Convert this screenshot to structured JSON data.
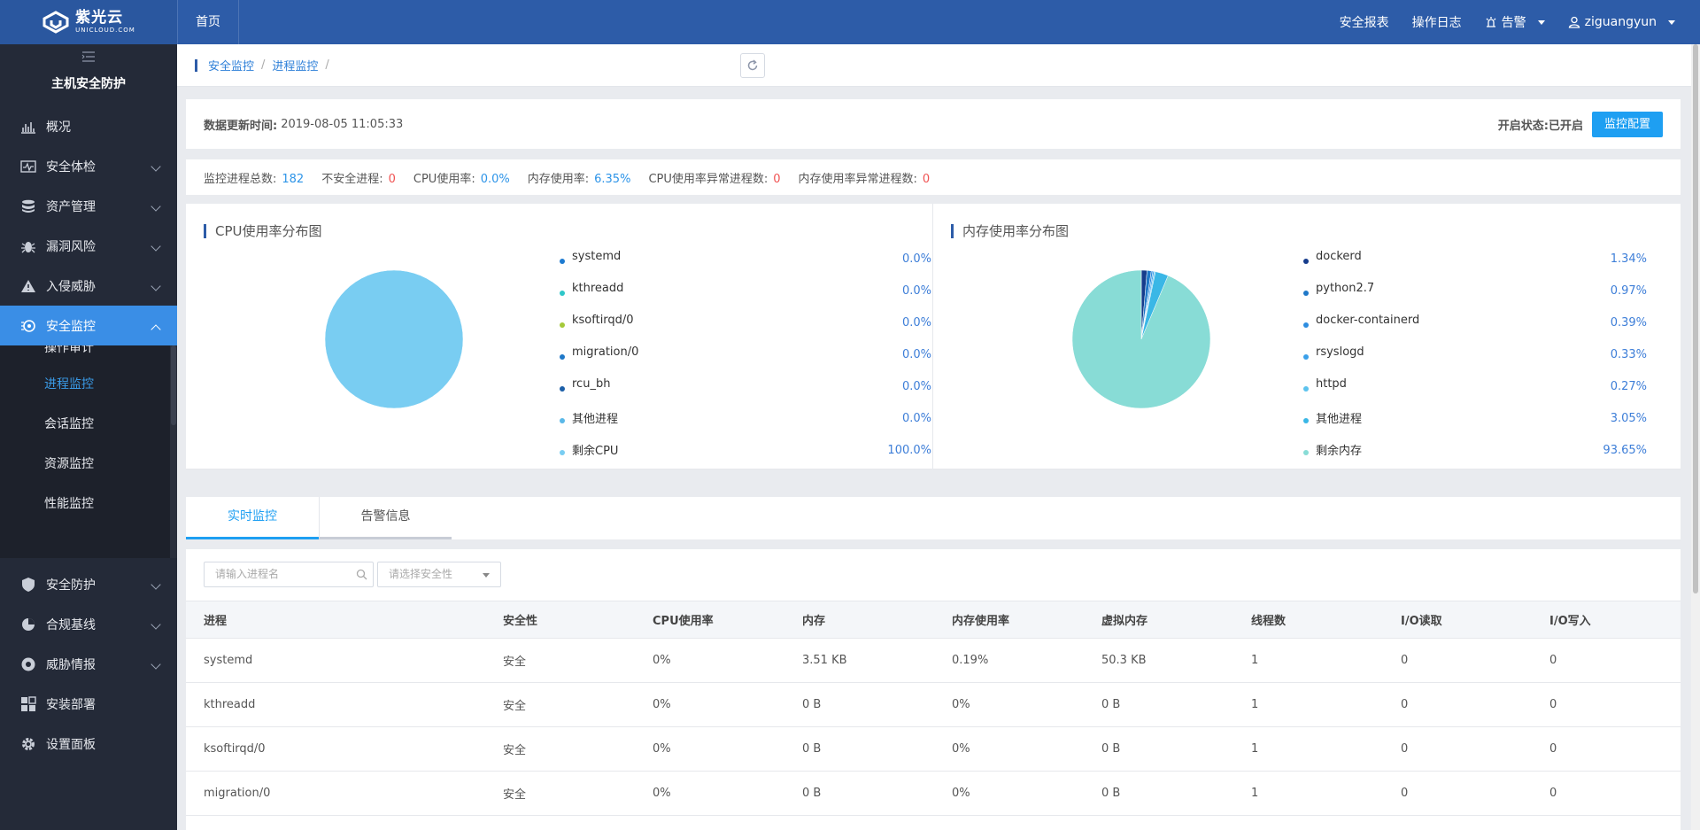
{
  "topbar": {
    "logo_cn": "紫光云",
    "logo_en": "UNICLOUD.COM",
    "home": "首页",
    "security_report": "安全报表",
    "operation_log": "操作日志",
    "alarm": "告警",
    "username": "ziguangyun"
  },
  "sidebar": {
    "title": "主机安全防护",
    "items": [
      {
        "label": "概况",
        "icon": "bar-chart-icon"
      },
      {
        "label": "安全体检",
        "icon": "checkup-icon"
      },
      {
        "label": "资产管理",
        "icon": "database-icon"
      },
      {
        "label": "漏洞风险",
        "icon": "bug-icon"
      },
      {
        "label": "入侵威胁",
        "icon": "warning-triangle-icon"
      },
      {
        "label": "安全监控",
        "icon": "monitor-icon"
      },
      {
        "label": "安全防护",
        "icon": "shield-icon"
      },
      {
        "label": "合规基线",
        "icon": "baseline-icon"
      },
      {
        "label": "威胁情报",
        "icon": "intel-icon"
      },
      {
        "label": "安装部署",
        "icon": "grid-icon"
      },
      {
        "label": "设置面板",
        "icon": "gear-icon"
      }
    ],
    "submenu": [
      "操作审计",
      "进程监控",
      "会话监控",
      "资源监控",
      "性能监控"
    ]
  },
  "breadcrumb": {
    "level1": "安全监控",
    "level2": "进程监控",
    "sep": "/"
  },
  "update": {
    "label": "数据更新时间:",
    "time": "2019-08-05 11:05:33",
    "status": "开启状态:已开启",
    "config_button": "监控配置"
  },
  "stats": {
    "total_label": "监控进程总数:",
    "total": "182",
    "unsafe_label": "不安全进程:",
    "unsafe": "0",
    "cpu_label": "CPU使用率:",
    "cpu": "0.0%",
    "mem_label": "内存使用率:",
    "mem": "6.35%",
    "cpu_abn_label": "CPU使用率异常进程数:",
    "cpu_abn": "0",
    "mem_abn_label": "内存使用率异常进程数:",
    "mem_abn": "0"
  },
  "cpu_chart": {
    "title": "CPU使用率分布图",
    "legend": [
      {
        "name": "systemd",
        "pct": "0.0%",
        "color": "#1d7bd1"
      },
      {
        "name": "kthreadd",
        "pct": "0.0%",
        "color": "#2ec7c9"
      },
      {
        "name": "ksoftirqd/0",
        "pct": "0.0%",
        "color": "#a5c93a"
      },
      {
        "name": "migration/0",
        "pct": "0.0%",
        "color": "#1f78c8"
      },
      {
        "name": "rcu_bh",
        "pct": "0.0%",
        "color": "#1c5fa8"
      },
      {
        "name": "其他进程",
        "pct": "0.0%",
        "color": "#5ab8e8"
      },
      {
        "name": "剩余CPU",
        "pct": "100.0%",
        "color": "#79cdf2"
      }
    ]
  },
  "mem_chart": {
    "title": "内存使用率分布图",
    "legend": [
      {
        "name": "dockerd",
        "pct": "1.34%",
        "color": "#163c8c"
      },
      {
        "name": "python2.7",
        "pct": "0.97%",
        "color": "#1f78c8"
      },
      {
        "name": "docker-containerd",
        "pct": "0.39%",
        "color": "#2d8de0"
      },
      {
        "name": "rsyslogd",
        "pct": "0.33%",
        "color": "#3aa0ea"
      },
      {
        "name": "httpd",
        "pct": "0.27%",
        "color": "#5cc3ee"
      },
      {
        "name": "其他进程",
        "pct": "3.05%",
        "color": "#3ab7e6"
      },
      {
        "name": "剩余内存",
        "pct": "93.65%",
        "color": "#88dcd6"
      }
    ]
  },
  "chart_data": [
    {
      "type": "pie",
      "title": "CPU使用率分布图",
      "categories": [
        "systemd",
        "kthreadd",
        "ksoftirqd/0",
        "migration/0",
        "rcu_bh",
        "其他进程",
        "剩余CPU"
      ],
      "values": [
        0.0,
        0.0,
        0.0,
        0.0,
        0.0,
        0.0,
        100.0
      ]
    },
    {
      "type": "pie",
      "title": "内存使用率分布图",
      "categories": [
        "dockerd",
        "python2.7",
        "docker-containerd",
        "rsyslogd",
        "httpd",
        "其他进程",
        "剩余内存"
      ],
      "values": [
        1.34,
        0.97,
        0.39,
        0.33,
        0.27,
        3.05,
        93.65
      ]
    }
  ],
  "tabs": [
    "实时监控",
    "告警信息"
  ],
  "filters": {
    "process_placeholder": "请输入进程名",
    "safety_placeholder": "请选择安全性"
  },
  "table": {
    "columns": [
      "进程",
      "安全性",
      "CPU使用率",
      "内存",
      "内存使用率",
      "虚拟内存",
      "线程数",
      "I/O读取",
      "I/O写入"
    ],
    "rows": [
      [
        "systemd",
        "安全",
        "0%",
        "3.51 KB",
        "0.19%",
        "50.3 KB",
        "1",
        "0",
        "0"
      ],
      [
        "kthreadd",
        "安全",
        "0%",
        "0 B",
        "0%",
        "0 B",
        "1",
        "0",
        "0"
      ],
      [
        "ksoftirqd/0",
        "安全",
        "0%",
        "0 B",
        "0%",
        "0 B",
        "1",
        "0",
        "0"
      ],
      [
        "migration/0",
        "安全",
        "0%",
        "0 B",
        "0%",
        "0 B",
        "1",
        "0",
        "0"
      ]
    ]
  }
}
